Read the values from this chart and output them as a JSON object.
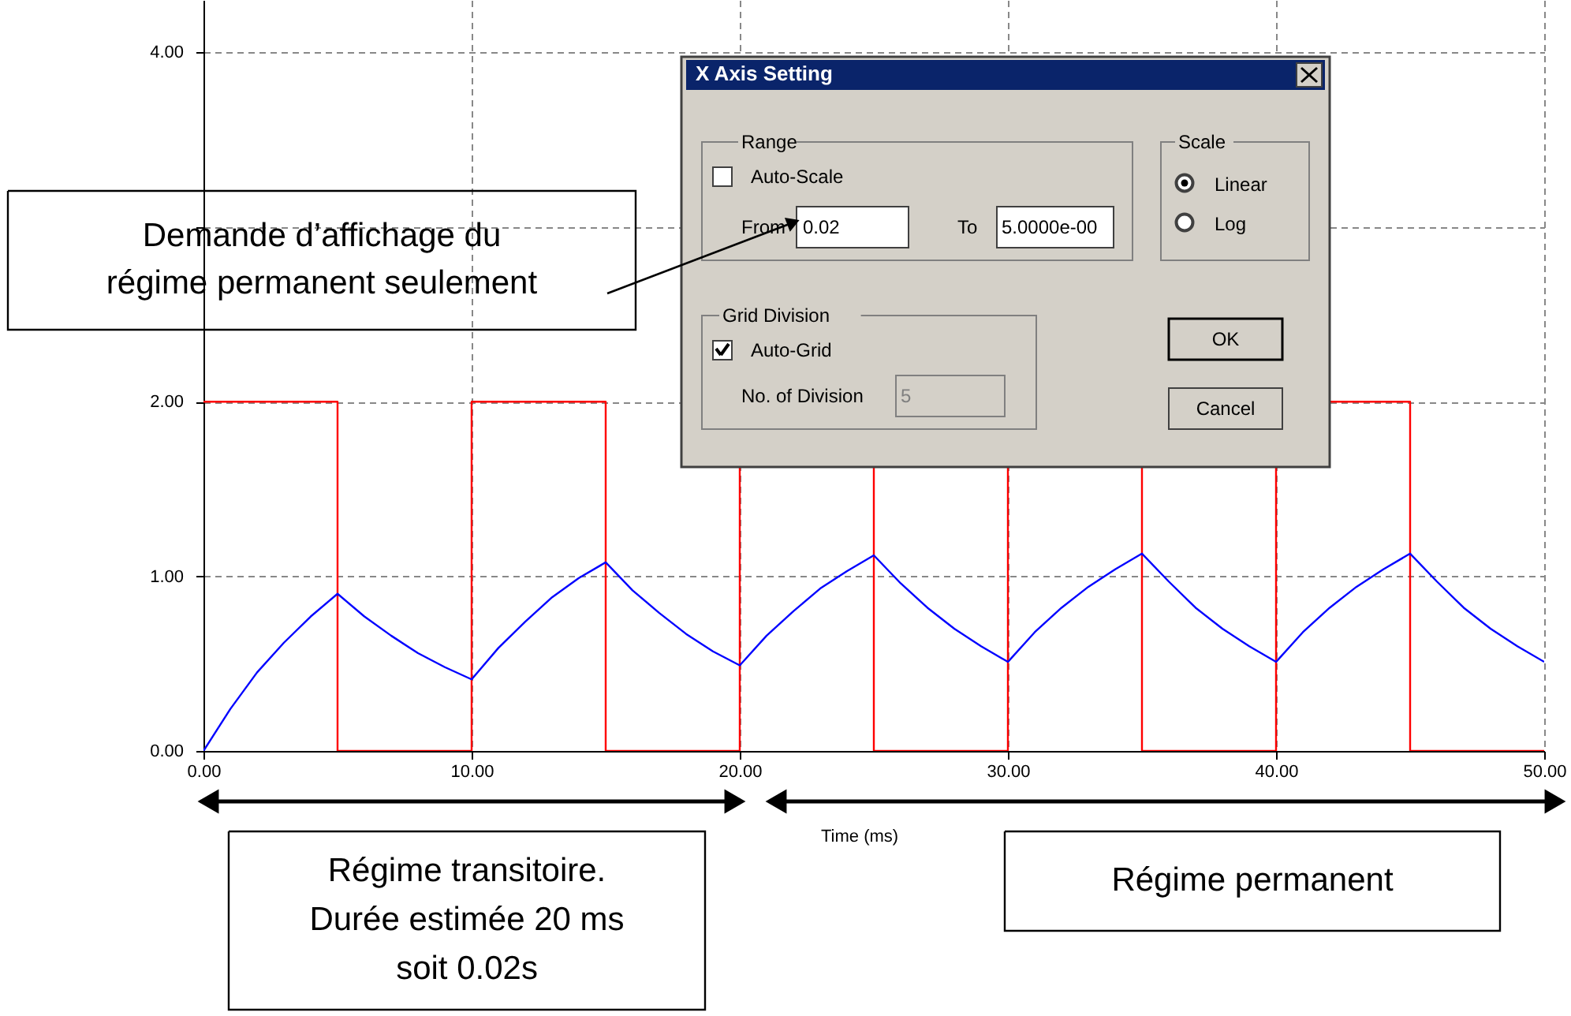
{
  "chart_data": {
    "type": "line",
    "xlabel": "Time (ms)",
    "xlim": [
      0,
      50
    ],
    "ylim": [
      0,
      4.3
    ],
    "xticks": [
      {
        "value": 0,
        "label": "0.00"
      },
      {
        "value": 10,
        "label": "10.00"
      },
      {
        "value": 20,
        "label": "20.00"
      },
      {
        "value": 30,
        "label": "30.00"
      },
      {
        "value": 40,
        "label": "40.00"
      },
      {
        "value": 50,
        "label": "50.00"
      }
    ],
    "yticks": [
      {
        "value": 0,
        "label": "0.00"
      },
      {
        "value": 1,
        "label": "1.00"
      },
      {
        "value": 2,
        "label": "2.00"
      },
      {
        "value": 3,
        "label": null
      },
      {
        "value": 4,
        "label": "4.00"
      }
    ],
    "grid": true,
    "marker": "none",
    "line_style": "solid",
    "series": [
      {
        "color": "#ff0000",
        "x": [
          0,
          5,
          5,
          10,
          10,
          15,
          15,
          20,
          20,
          22,
          25,
          25,
          30,
          30,
          32,
          35,
          35,
          40,
          40,
          41,
          42,
          45,
          45,
          50
        ],
        "values": [
          2,
          2,
          0,
          0,
          2,
          2,
          0,
          0,
          1.63,
          null,
          1.63,
          0,
          0,
          1.63,
          null,
          1.63,
          0,
          0,
          1.63,
          null,
          2,
          2,
          0,
          0
        ]
      },
      {
        "color": "#0000ff",
        "x": [
          0,
          1,
          2,
          3,
          4,
          5,
          6,
          7,
          8,
          9,
          10,
          11,
          12,
          13,
          14,
          15,
          16,
          17,
          18,
          19,
          20,
          21,
          22,
          23,
          24,
          25,
          26,
          27,
          28,
          29,
          30,
          31,
          32,
          33,
          34,
          35,
          36,
          37,
          38,
          39,
          40,
          41,
          42,
          43,
          44,
          45,
          46,
          47,
          48,
          49,
          50
        ],
        "values": [
          0,
          0.24,
          0.45,
          0.62,
          0.77,
          0.9,
          0.77,
          0.66,
          0.56,
          0.48,
          0.41,
          0.59,
          0.74,
          0.88,
          0.99,
          1.08,
          0.92,
          0.79,
          0.67,
          0.57,
          0.49,
          0.66,
          0.8,
          0.93,
          1.03,
          1.12,
          0.96,
          0.82,
          0.7,
          0.6,
          0.51,
          0.68,
          0.82,
          0.94,
          1.04,
          1.13,
          0.97,
          0.82,
          0.7,
          0.6,
          0.51,
          0.68,
          0.82,
          0.94,
          1.04,
          1.13,
          0.97,
          0.82,
          0.7,
          0.6,
          0.51
        ]
      }
    ],
    "annotations": [
      "Demande d’affichage du régime permanent seulement",
      "Régime transitoire. Durée estimée 20 ms soit 0.02s",
      "Régime permanent",
      "X Axis Setting",
      "Range",
      "Auto-Scale",
      "From",
      "0.02",
      "To",
      "5.0000e-00",
      "Scale",
      "Linear",
      "Log",
      "Grid Division",
      "Auto-Grid",
      "No. of Division",
      "5",
      "OK",
      "Cancel"
    ]
  }
}
